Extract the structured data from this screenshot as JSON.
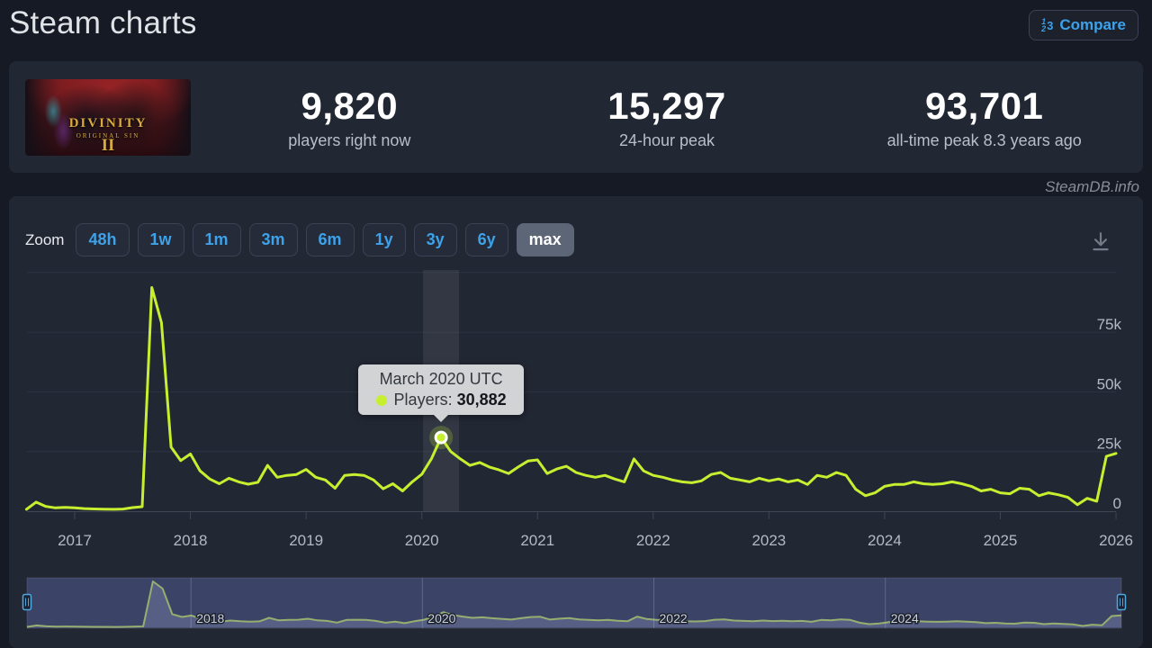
{
  "header": {
    "title": "Steam charts",
    "compare_label": "Compare"
  },
  "icons": {
    "compare": "compare-123-icon",
    "download": "download-arrow-icon",
    "series_dot": "green-dot"
  },
  "game": {
    "name": "DIVINITY",
    "subtitle": "ORIGINAL SIN",
    "numeral": "II"
  },
  "stats": {
    "items": [
      {
        "value": "9,820",
        "label": "players right now"
      },
      {
        "value": "15,297",
        "label": "24-hour peak"
      },
      {
        "value": "93,701",
        "label": "all-time peak 8.3 years ago"
      }
    ]
  },
  "watermark": "SteamDB.info",
  "toolbar": {
    "zoom_label": "Zoom",
    "ranges": [
      "48h",
      "1w",
      "1m",
      "3m",
      "6m",
      "1y",
      "3y",
      "6y",
      "max"
    ],
    "selected": "max"
  },
  "tooltip": {
    "title": "March 2020 UTC",
    "series_label": "Players:",
    "value": "30,882"
  },
  "chart_data": {
    "type": "line",
    "title": "",
    "xlabel": "",
    "ylabel": "",
    "x_start": "2016-08",
    "x_interval": "monthly",
    "x_end": "2026-01",
    "x_ticks": [
      2017,
      2018,
      2019,
      2020,
      2021,
      2022,
      2023,
      2024,
      2025,
      2026
    ],
    "y_ticks": [
      {
        "value": 75000,
        "label": "75k"
      },
      {
        "value": 50000,
        "label": "50k"
      },
      {
        "value": 25000,
        "label": "25k"
      },
      {
        "value": 0,
        "label": "0"
      }
    ],
    "grid_values": [
      100000,
      75000,
      50000,
      25000
    ],
    "ylim": [
      0,
      100000
    ],
    "legend": "none",
    "series": [
      {
        "name": "Players",
        "values": [
          800,
          3800,
          2000,
          1400,
          1600,
          1400,
          1100,
          950,
          850,
          800,
          900,
          1500,
          1900,
          93701,
          79000,
          26900,
          21200,
          24000,
          16900,
          13500,
          11500,
          13800,
          12300,
          11300,
          12100,
          19200,
          14200,
          15000,
          15400,
          17500,
          14200,
          13100,
          9600,
          15000,
          15400,
          15000,
          13100,
          9400,
          11500,
          8500,
          12300,
          15500,
          22000,
          30882,
          25000,
          21900,
          19200,
          20400,
          18500,
          17300,
          15800,
          18500,
          21000,
          21500,
          15800,
          17700,
          18800,
          16200,
          15000,
          14200,
          15000,
          13500,
          12300,
          21900,
          16900,
          15000,
          14200,
          13100,
          12300,
          11900,
          12700,
          15400,
          16200,
          13800,
          13100,
          12300,
          13800,
          12700,
          13500,
          12300,
          13100,
          11200,
          15000,
          14200,
          16200,
          15000,
          9200,
          6500,
          7700,
          10400,
          11200,
          11200,
          12300,
          11500,
          11200,
          11500,
          12300,
          11500,
          10400,
          8500,
          9200,
          7700,
          7300,
          9600,
          9200,
          6500,
          7700,
          6900,
          5800,
          2700,
          5400,
          4200,
          23000,
          24200
        ]
      }
    ],
    "highlight": {
      "index": 43,
      "month": "March 2020",
      "value": 30882
    },
    "navigator_labels": [
      2018,
      2020,
      2022,
      2024
    ],
    "colors": {
      "line": "#c6f02f",
      "grid": "#2d3340",
      "axis": "#3f4654",
      "tick_label": "#b4bac4",
      "crosshair": "rgba(255,255,255,0.075)",
      "accent": "#4fa7e0",
      "nav_mask": "rgba(98,110,180,0.40)",
      "nav_area": "rgba(120,128,140,0.55)",
      "nav_line": "#b9d944",
      "nav_grid": "rgba(200,210,230,0.25)",
      "nav_label": "#ccd1d9"
    }
  }
}
